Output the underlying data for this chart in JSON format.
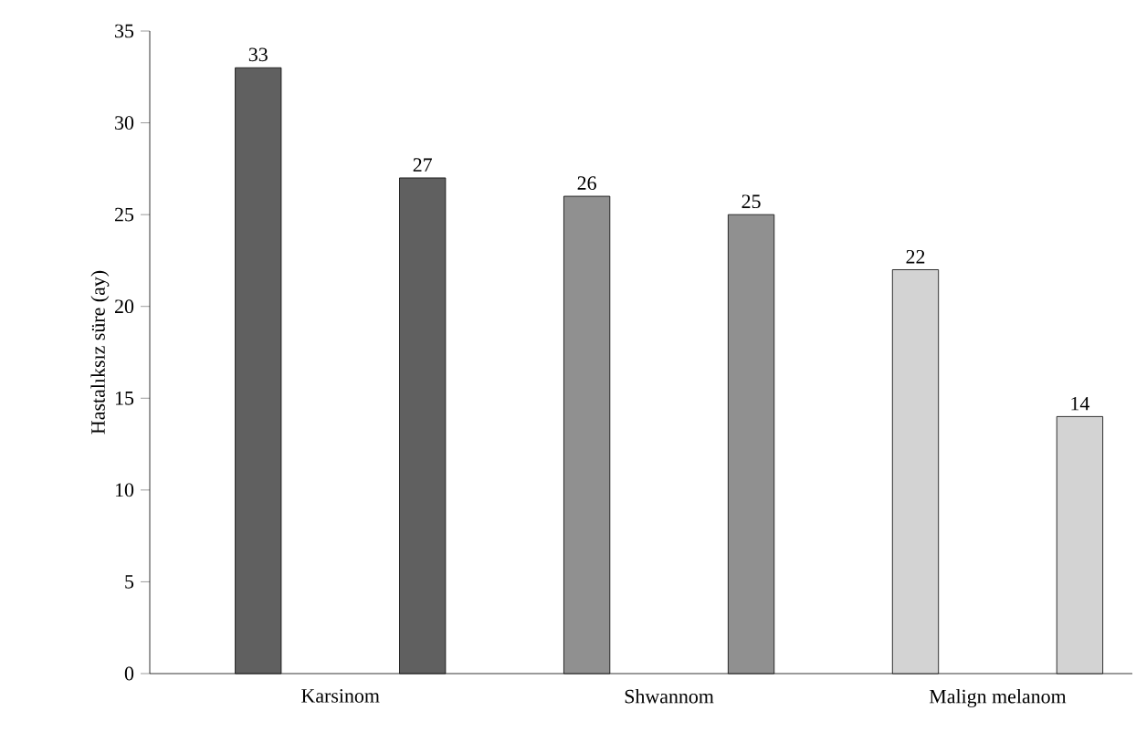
{
  "chart_data": {
    "type": "bar",
    "ylabel": "Hastalıksız süre (ay)",
    "categories": [
      "Karsinom",
      "Shwannom",
      "Malign melanom"
    ],
    "series": [
      {
        "colors": [
          "#606060",
          "#909090",
          "#d3d3d3"
        ],
        "values": [
          33,
          26,
          22
        ]
      },
      {
        "colors": [
          "#606060",
          "#909090",
          "#d3d3d3"
        ],
        "values": [
          27,
          25,
          14
        ]
      }
    ],
    "ylim": [
      0,
      35
    ],
    "yticks": [
      0,
      5,
      10,
      15,
      20,
      25,
      30,
      35
    ],
    "data_labels": true
  }
}
